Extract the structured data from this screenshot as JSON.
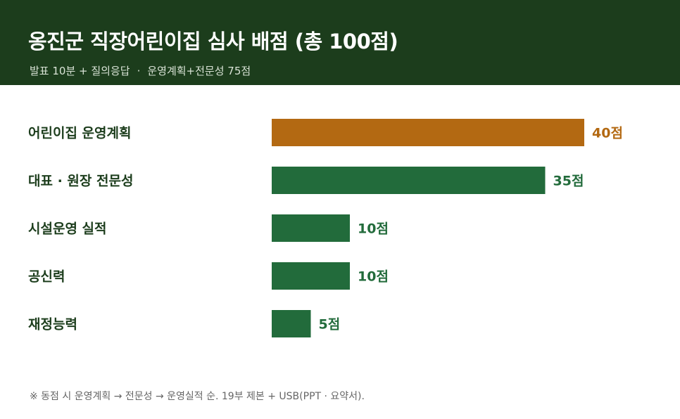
{
  "header": {
    "title": "옹진군 직장어린이집 심사 배점 (총 100점)",
    "subtitle_part1": "발표 10분 + 질의응답",
    "subtitle_sep": "·",
    "subtitle_part2": "운영계획+전문성 75점"
  },
  "footnote": "※ 동점 시 운영계획 → 전문성 → 운영실적 순. 19부 제본 + USB(PPT · 요약서).",
  "colors": {
    "header_bg": "#1c3d1c",
    "highlight": "#b36912",
    "bar": "#226b3b",
    "label": "#1c3d1c"
  },
  "chart_data": {
    "type": "bar",
    "orientation": "horizontal",
    "categories": [
      "어린이집 운영계획",
      "대표 · 원장 전문성",
      "시설운영 실적",
      "공신력",
      "재정능력"
    ],
    "values": [
      40,
      35,
      10,
      10,
      5
    ],
    "value_labels": [
      "40점",
      "35점",
      "10점",
      "10점",
      "5점"
    ],
    "highlight_index": 0,
    "xlim": [
      0,
      40
    ],
    "grid": false,
    "legend": false
  }
}
